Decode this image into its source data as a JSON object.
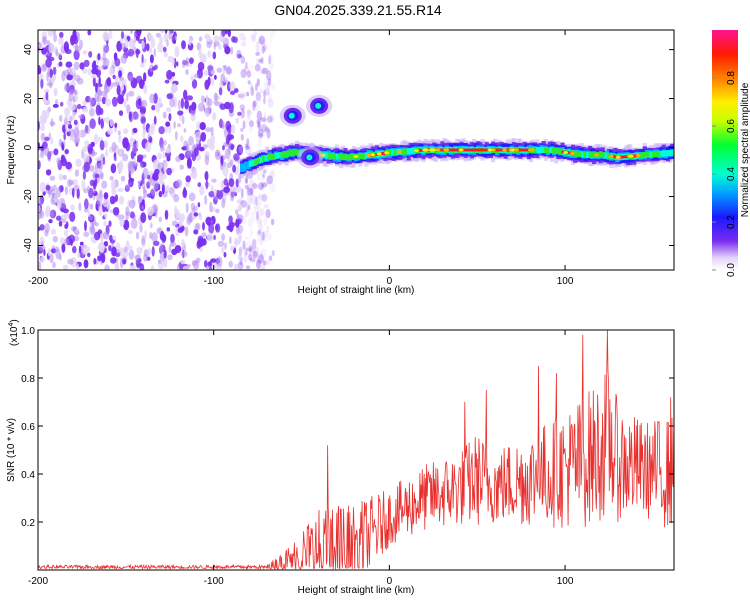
{
  "title": "GN04.2025.339.21.55.R14",
  "chart_data": [
    {
      "type": "heatmap",
      "title": "GN04.2025.339.21.55.R14",
      "xlabel": "Height of straight line (km)",
      "ylabel": "Frequency (Hz)",
      "xlim": [
        -200,
        162
      ],
      "ylim": [
        -50,
        48
      ],
      "xticks": [
        -200,
        -100,
        0,
        100
      ],
      "yticks": [
        -40,
        -20,
        0,
        20,
        40
      ],
      "xtick_labels": [
        "-200",
        "-100",
        "0",
        "100"
      ],
      "ytick_labels": [
        "-40",
        "-20",
        "0",
        "20",
        "40"
      ],
      "ridge": {
        "description": "dominant spectral line",
        "x": [
          -85,
          -70,
          -55,
          -40,
          -25,
          -10,
          0,
          20,
          40,
          60,
          75,
          90,
          100,
          110,
          120,
          130,
          145,
          162
        ],
        "y": [
          -8,
          -4,
          -2,
          -3,
          -4,
          -3,
          -2,
          -1,
          -1,
          -1,
          -1,
          -1,
          -2,
          -3,
          -3,
          -4,
          -3,
          -2
        ]
      },
      "blobs": [
        {
          "x": -55,
          "y": 13
        },
        {
          "x": -40,
          "y": 17
        },
        {
          "x": -45,
          "y": -4
        }
      ],
      "noise_region": {
        "x": [
          -200,
          -70
        ]
      },
      "colorbar": {
        "label": "Normalized spectral amplitude",
        "range": [
          0,
          1
        ],
        "ticks": [
          "0.0",
          "0.2",
          "0.4",
          "0.6",
          "0.8"
        ]
      }
    },
    {
      "type": "line",
      "xlabel": "Height of straight line (km)",
      "ylabel": "SNR (10 * v/v)",
      "multiplier": "(x10",
      "multiplier_exp": "4",
      "multiplier_close": ")",
      "xlim": [
        -200,
        162
      ],
      "ylim": [
        0,
        1.0
      ],
      "xticks": [
        -200,
        -100,
        0,
        100
      ],
      "yticks": [
        0.2,
        0.4,
        0.6,
        0.8,
        1.0
      ],
      "xtick_labels": [
        "-200",
        "-100",
        "0",
        "100"
      ],
      "ytick_labels": [
        "0.2",
        "0.4",
        "0.6",
        "0.8",
        "1.0"
      ],
      "envelope": {
        "x": [
          -200,
          -70,
          -60,
          -50,
          -40,
          -30,
          -20,
          -10,
          0,
          20,
          40,
          50,
          60,
          80,
          100,
          110,
          120,
          125,
          130,
          145,
          162
        ],
        "base": [
          0.01,
          0.01,
          0.03,
          0.06,
          0.08,
          0.08,
          0.1,
          0.15,
          0.22,
          0.3,
          0.34,
          0.38,
          0.35,
          0.38,
          0.42,
          0.45,
          0.5,
          0.55,
          0.45,
          0.42,
          0.4
        ],
        "amp": [
          0.008,
          0.01,
          0.05,
          0.12,
          0.18,
          0.2,
          0.18,
          0.16,
          0.12,
          0.14,
          0.16,
          0.2,
          0.16,
          0.2,
          0.25,
          0.28,
          0.3,
          0.32,
          0.25,
          0.2,
          0.25
        ]
      },
      "peaks": [
        {
          "x": 124,
          "y": 1.0
        },
        {
          "x": 110,
          "y": 0.98
        },
        {
          "x": 85,
          "y": 0.85
        },
        {
          "x": 95,
          "y": 0.82
        },
        {
          "x": 160,
          "y": 0.72
        },
        {
          "x": -35,
          "y": 0.52
        },
        {
          "x": 43,
          "y": 0.7
        },
        {
          "x": 55,
          "y": 0.75
        }
      ],
      "series_color": "#e8302e"
    }
  ]
}
